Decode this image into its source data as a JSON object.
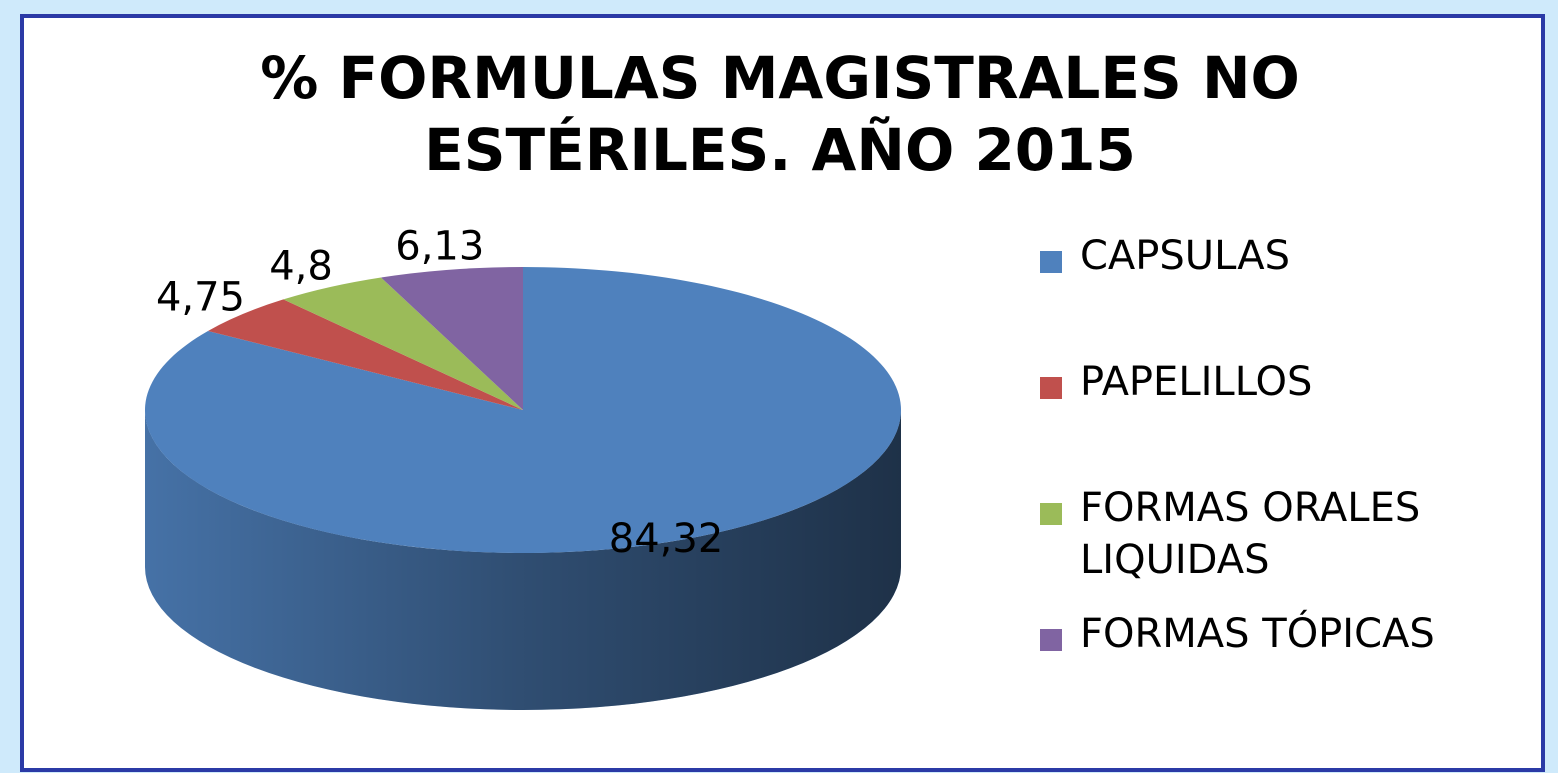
{
  "chart_data": {
    "type": "pie",
    "title": "% FORMULAS MAGISTRALES NO ESTÉRILES. AÑO 2015",
    "categories": [
      "CAPSULAS",
      "PAPELILLOS",
      "FORMAS ORALES LIQUIDAS",
      "FORMAS TÓPICAS"
    ],
    "values": [
      84.32,
      4.75,
      4.8,
      6.13
    ],
    "value_labels": [
      "84,32",
      "4,75",
      "4,8",
      "6,13"
    ],
    "colors": [
      "#4f81bd",
      "#c0504d",
      "#9bbb59",
      "#8064a2"
    ],
    "legend": "right"
  }
}
